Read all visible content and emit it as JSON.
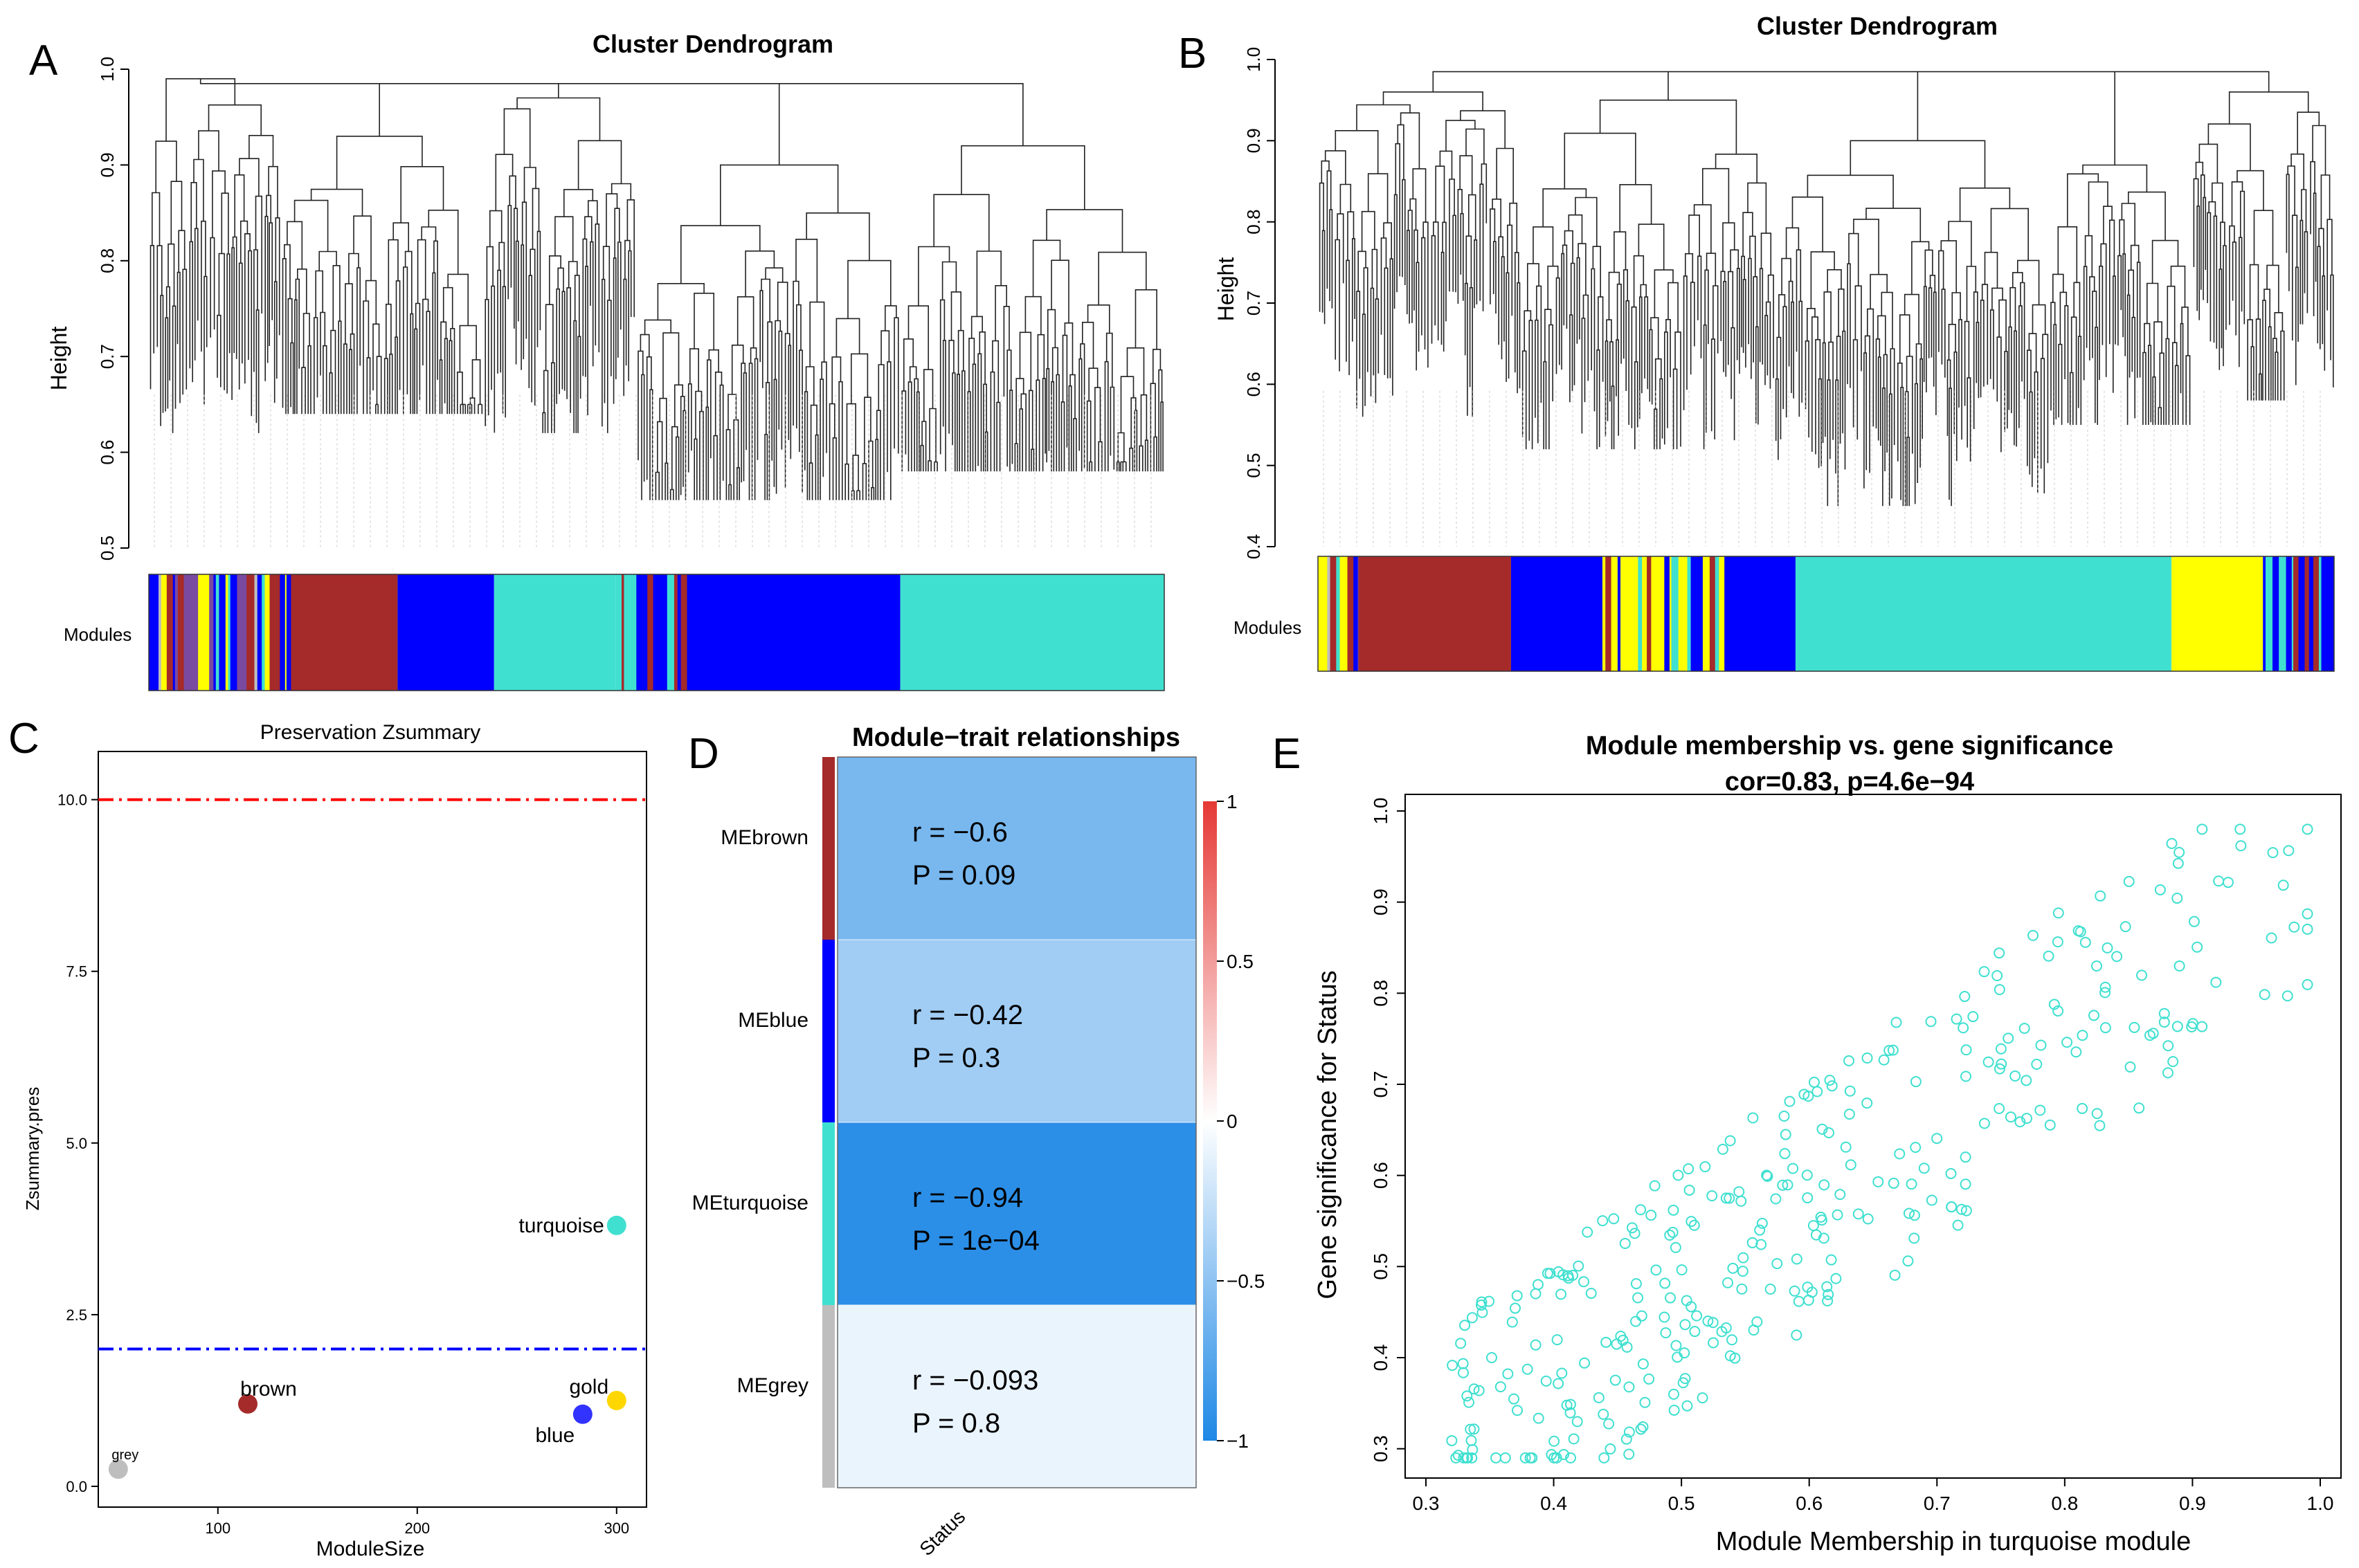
{
  "panels": {
    "A": {
      "letter": "A",
      "title": "Cluster Dendrogram",
      "ylabel": "Height",
      "ylim": [
        0.5,
        1.0
      ],
      "yticks": [
        "0.5",
        "0.6",
        "0.7",
        "0.8",
        "0.9",
        "1.0"
      ],
      "modules_label": "Modules",
      "module_bar": [
        {
          "color": "mixed",
          "from": 0.0,
          "to": 0.14
        },
        {
          "color": "#a52a2a",
          "from": 0.14,
          "to": 0.245
        },
        {
          "color": "#0000ff",
          "from": 0.245,
          "to": 0.34
        },
        {
          "color": "#40e0d0",
          "from": 0.34,
          "to": 0.46
        },
        {
          "color": "mixed-blue",
          "from": 0.46,
          "to": 0.53
        },
        {
          "color": "#0000ff",
          "from": 0.53,
          "to": 0.74
        },
        {
          "color": "#40e0d0",
          "from": 0.74,
          "to": 1.0
        }
      ]
    },
    "B": {
      "letter": "B",
      "title": "Cluster Dendrogram",
      "ylabel": "Height",
      "ylim": [
        0.4,
        1.0
      ],
      "yticks": [
        "0.4",
        "0.5",
        "0.6",
        "0.7",
        "0.8",
        "0.9",
        "1.0"
      ],
      "modules_label": "Modules",
      "module_bar": [
        {
          "color": "mixed",
          "from": 0.0,
          "to": 0.04
        },
        {
          "color": "#a52a2a",
          "from": 0.04,
          "to": 0.19
        },
        {
          "color": "#0000ff",
          "from": 0.19,
          "to": 0.28
        },
        {
          "color": "mixed-yellow",
          "from": 0.28,
          "to": 0.4
        },
        {
          "color": "#0000ff",
          "from": 0.4,
          "to": 0.47
        },
        {
          "color": "#40e0d0",
          "from": 0.47,
          "to": 0.84
        },
        {
          "color": "#ffff00",
          "from": 0.84,
          "to": 0.93
        },
        {
          "color": "mixed-blue",
          "from": 0.93,
          "to": 1.0
        }
      ]
    },
    "C": {
      "letter": "C",
      "chart_data": {
        "type": "scatter",
        "title": "Preservation Zsummary",
        "xlabel": "ModuleSize",
        "ylabel": "Zsummary.pres",
        "xticks": [
          "100",
          "200",
          "300"
        ],
        "yticks": [
          "0.0",
          "2.5",
          "5.0",
          "7.5",
          "10.0"
        ],
        "xlim": [
          40,
          315
        ],
        "ylim": [
          0,
          10.5
        ],
        "thresholds": [
          {
            "value": 10,
            "color": "#ff0000"
          },
          {
            "value": 2,
            "color": "#0000ff"
          }
        ],
        "points": [
          {
            "label": "grey",
            "x": 50,
            "y": 0.25,
            "color": "#bebebe"
          },
          {
            "label": "brown",
            "x": 115,
            "y": 1.2,
            "color": "#a52a2a"
          },
          {
            "label": "blue",
            "x": 283,
            "y": 1.05,
            "color": "#3333ff"
          },
          {
            "label": "gold",
            "x": 300,
            "y": 1.25,
            "color": "#ffd700"
          },
          {
            "label": "turquoise",
            "x": 300,
            "y": 3.8,
            "color": "#40e0d0"
          }
        ]
      }
    },
    "D": {
      "letter": "D",
      "chart_data": {
        "type": "heatmap",
        "title": "Module−trait relationships",
        "xlabel": "Status",
        "colorbar_ticks": [
          "1",
          "0.5",
          "0",
          "−0.5",
          "−1"
        ],
        "rows": [
          {
            "label": "MEbrown",
            "module_color": "#a52a2a",
            "r": -0.6,
            "p": 0.09,
            "line1": "r    =    −0.6",
            "line2": "P    =    0.09"
          },
          {
            "label": "MEblue",
            "module_color": "#0000ff",
            "r": -0.42,
            "p": 0.3,
            "line1": "r = −0.42",
            "line2": "P = 0.3"
          },
          {
            "label": "MEturquoise",
            "module_color": "#40e0d0",
            "r": -0.94,
            "p": 0.0001,
            "line1": "r = −0.94",
            "line2": "P = 1e−04"
          },
          {
            "label": "MEgrey",
            "module_color": "#bebebe",
            "r": -0.093,
            "p": 0.8,
            "line1": "r = −0.093",
            "line2": "P = 0.8"
          }
        ]
      }
    },
    "E": {
      "letter": "E",
      "chart_data": {
        "type": "scatter",
        "title": "Module membership vs. gene significance",
        "subtitle": "cor=0.83, p=4.6e−94",
        "xlabel": "Module Membership in turquoise module",
        "ylabel": "Gene significance for Status",
        "xlim": [
          0.3,
          1.0
        ],
        "ylim": [
          0.28,
          1.0
        ],
        "xticks": [
          "0.3",
          "0.4",
          "0.5",
          "0.6",
          "0.7",
          "0.8",
          "0.9",
          "1.0"
        ],
        "yticks": [
          "0.3",
          "0.4",
          "0.5",
          "0.6",
          "0.7",
          "0.8",
          "0.9",
          "1.0"
        ],
        "point_color": "#40e0d0",
        "n_points": 330,
        "correlation": 0.83
      }
    }
  }
}
